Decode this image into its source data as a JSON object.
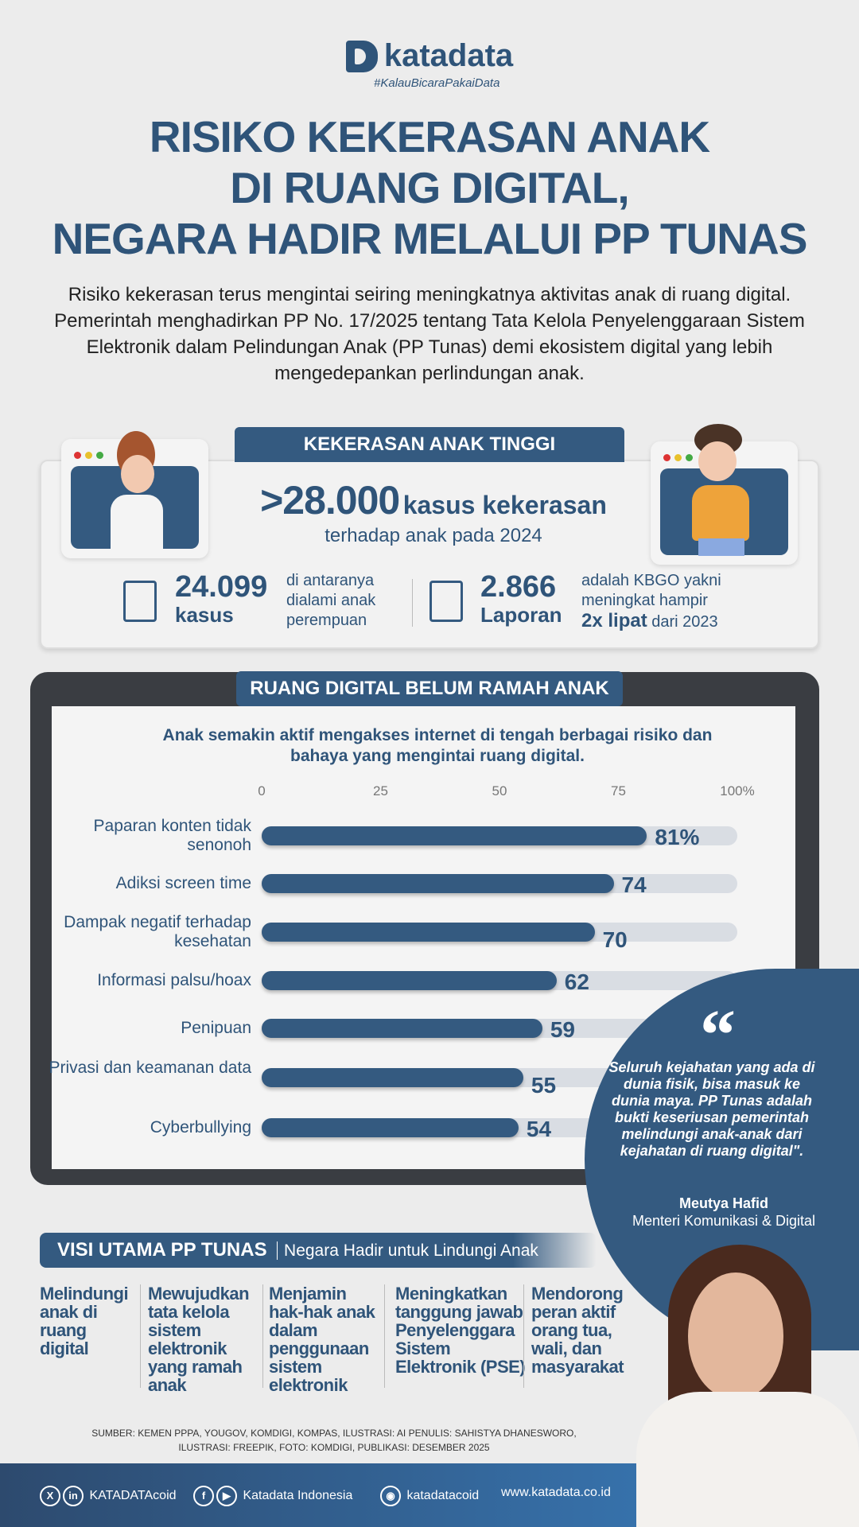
{
  "brand": {
    "name": "katadata",
    "tagline": "#KalauBicaraPakaiData"
  },
  "title": [
    "RISIKO KEKERASAN ANAK",
    "DI RUANG DIGITAL,",
    "NEGARA HADIR MELALUI PP TUNAS"
  ],
  "intro": "Risiko kekerasan terus mengintai seiring meningkatnya aktivitas anak di ruang digital. Pemerintah menghadirkan PP No. 17/2025 tentang Tata Kelola Penyelenggaraan Sistem Elektronik dalam Pelindungan Anak (PP Tunas) demi ekosistem digital yang lebih mengedepankan perlindungan anak.",
  "violence": {
    "header": "KEKERASAN ANAK TINGGI",
    "headline_number": ">28.000",
    "headline_text": "kasus kekerasan",
    "headline_sub": "terhadap anak pada 2024",
    "stats": [
      {
        "number": "24.099",
        "unit": "kasus",
        "desc": [
          "di antaranya",
          "dialami anak",
          "perempuan"
        ]
      },
      {
        "number": "2.866",
        "unit": "Laporan",
        "desc": [
          "adalah KBGO yakni",
          "meningkat hampir"
        ],
        "desc_bold": "2x lipat",
        "desc_end": "dari 2023"
      }
    ]
  },
  "digital": {
    "header": "RUANG DIGITAL BELUM RAMAH ANAK",
    "subtitle": "Anak semakin aktif mengakses internet di tengah berbagai risiko dan bahaya yang mengintai ruang digital."
  },
  "chart_data": {
    "type": "bar",
    "orientation": "horizontal",
    "title": "Anak semakin aktif mengakses internet di tengah berbagai risiko dan bahaya yang mengintai ruang digital.",
    "xlim": [
      0,
      100
    ],
    "ticks": [
      "0",
      "25",
      "50",
      "75",
      "100%"
    ],
    "categories": [
      "Paparan konten tidak senonoh",
      "Adiksi screen time",
      "Dampak negatif terhadap kesehatan",
      "Informasi palsu/hoax",
      "Penipuan",
      "Privasi dan keamanan data",
      "Cyberbullying"
    ],
    "values": [
      81,
      74,
      70,
      62,
      59,
      55,
      54
    ],
    "value_labels": [
      "81%",
      "74",
      "70",
      "62",
      "59",
      "55",
      "54"
    ],
    "bar_color": "#345a80",
    "track_color": "#d9dde3"
  },
  "quote": {
    "text": "Seluruh kejahatan yang ada di dunia fisik, bisa masuk ke dunia maya. PP Tunas adalah bukti keseriusan pemerintah melindungi anak-anak dari kejahatan di ruang digital\".",
    "name": "Meutya Hafid",
    "role": "Menteri Komunikasi & Digital"
  },
  "vision": {
    "header": "VISI UTAMA PP TUNAS",
    "subheader": "Negara Hadir untuk Lindungi Anak",
    "items": [
      "Melindungi anak di ruang digital",
      "Mewujudkan tata kelola sistem elektronik yang ramah anak",
      "Menjamin hak-hak anak dalam penggunaan sistem elektronik",
      "Meningkatkan tanggung jawab Penyelenggara Sistem Elektronik (PSE)",
      "Mendorong peran aktif orang tua, wali, dan masyarakat"
    ]
  },
  "source": {
    "line1": "SUMBER: KEMEN PPPA, YOUGOV, KOMDIGI, KOMPAS, ILUSTRASI: AI PENULIS: SAHISTYA DHANESWORO,",
    "line2": "ILUSTRASI: FREEPIK, FOTO: KOMDIGI, PUBLIKASI: DESEMBER 2025"
  },
  "footer": {
    "x_in": "KATADATAcoid",
    "fb_yt": "Katadata Indonesia",
    "ig": "katadatacoid",
    "web": "www.katadata.co.id"
  },
  "colors": {
    "primary": "#345a80",
    "background": "#ececec",
    "footer": "#2d4a6e"
  }
}
